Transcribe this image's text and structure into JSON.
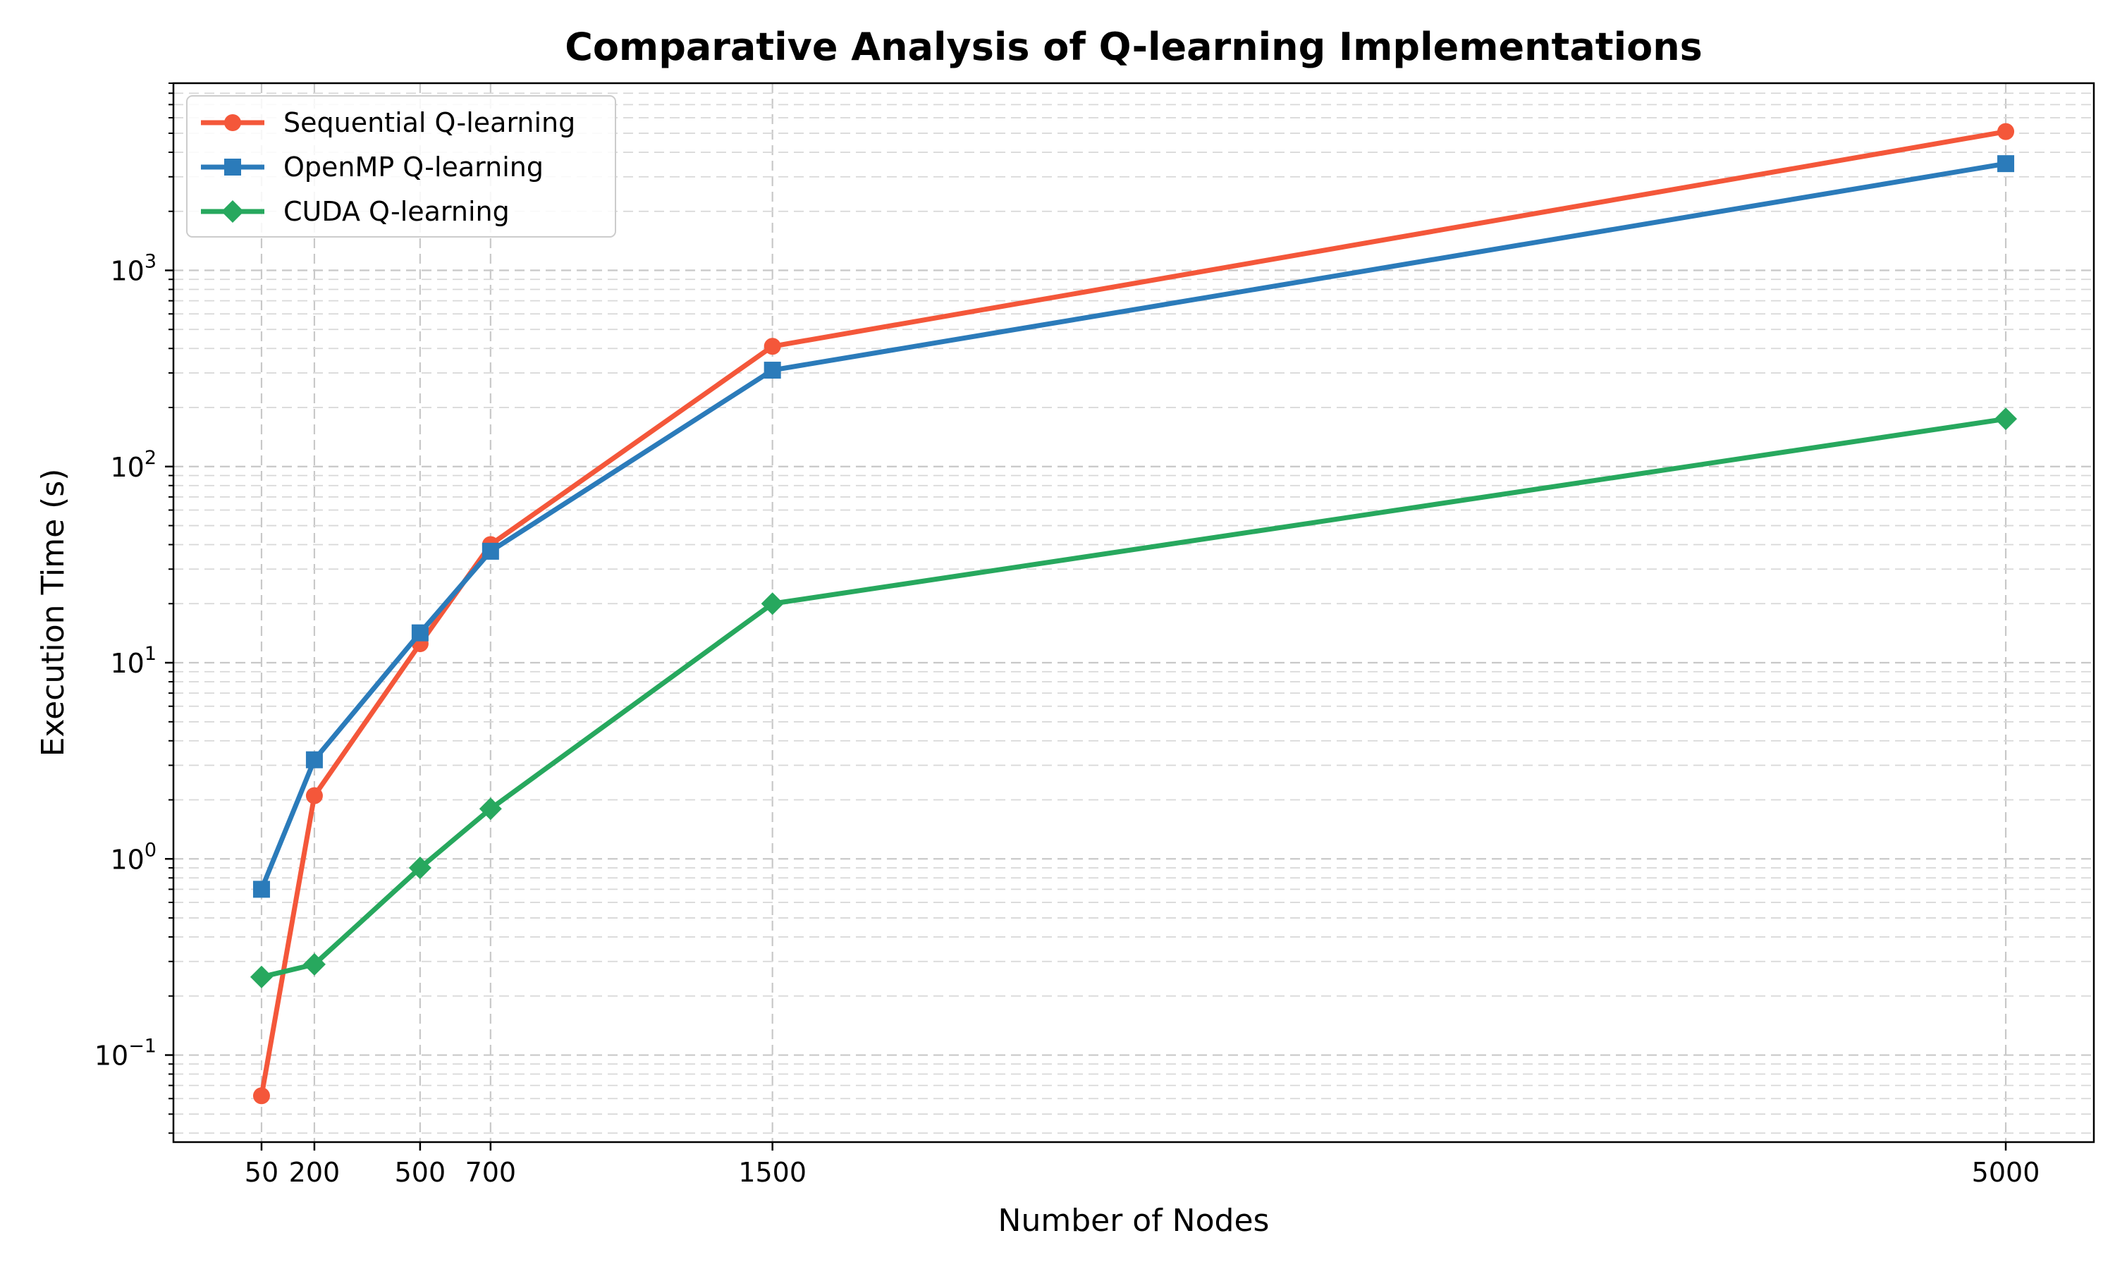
{
  "chart_data": {
    "type": "line",
    "title": "Comparative Analysis of Q-learning Implementations",
    "xlabel": "Number of Nodes",
    "ylabel": "Execution Time (s)",
    "x": [
      50,
      200,
      500,
      700,
      1500,
      5000
    ],
    "x_tick_labels": [
      "50",
      "200",
      "500",
      "700",
      "1500",
      "5000"
    ],
    "y_scale": "log",
    "y_ticks": [
      {
        "base": "10",
        "exp": "−1",
        "value": 0.1
      },
      {
        "base": "10",
        "exp": "0",
        "value": 1
      },
      {
        "base": "10",
        "exp": "1",
        "value": 10
      },
      {
        "base": "10",
        "exp": "2",
        "value": 100
      },
      {
        "base": "10",
        "exp": "3",
        "value": 1000
      }
    ],
    "xlim": [
      -200,
      5250
    ],
    "ylim": [
      0.036,
      9000
    ],
    "grid": true,
    "legend_position": "top-left",
    "series": [
      {
        "name": "Sequential Q-learning",
        "color": "#f4573a",
        "marker": "circle",
        "values": [
          0.062,
          2.1,
          12.5,
          40,
          410,
          5100
        ]
      },
      {
        "name": "OpenMP Q-learning",
        "color": "#2b7bba",
        "marker": "square",
        "values": [
          0.7,
          3.2,
          14.2,
          37,
          310,
          3500
        ]
      },
      {
        "name": "CUDA Q-learning",
        "color": "#27a85e",
        "marker": "diamond",
        "values": [
          0.25,
          0.29,
          0.9,
          1.8,
          20,
          175
        ]
      }
    ]
  }
}
